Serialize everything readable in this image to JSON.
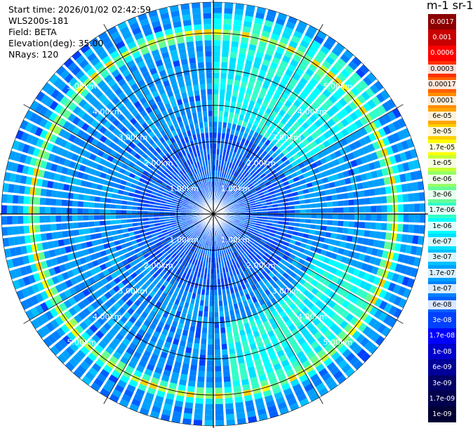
{
  "info": {
    "start_time": "Start time: 2026/01/02 02:42:59",
    "instrument": "WLS200s-181",
    "field": "Field: BETA",
    "elevation": "Elevation(deg): 35.00",
    "nrays": "NRays: 120"
  },
  "colorbar": {
    "title": "m-1 sr-1",
    "entries": [
      {
        "label": "0.0017",
        "color": "#8b0000"
      },
      {
        "label": "0.001",
        "color": "#c80000"
      },
      {
        "label": "0.0006",
        "color": "#ff0000"
      },
      {
        "label": "0.0003",
        "color": "#ff3000"
      },
      {
        "label": "0.00017",
        "color": "#ff6000"
      },
      {
        "label": "0.0001",
        "color": "#ff8c00"
      },
      {
        "label": "6e-05",
        "color": "#ffa500"
      },
      {
        "label": "3e-05",
        "color": "#ffd000"
      },
      {
        "label": "1.7e-05",
        "color": "#ffff00"
      },
      {
        "label": "1e-05",
        "color": "#c8ff32"
      },
      {
        "label": "6e-06",
        "color": "#96ff64"
      },
      {
        "label": "3e-06",
        "color": "#64ff96"
      },
      {
        "label": "1.7e-06",
        "color": "#32ffc8"
      },
      {
        "label": "1e-06",
        "color": "#00ffff"
      },
      {
        "label": "6e-07",
        "color": "#00e0ff"
      },
      {
        "label": "3e-07",
        "color": "#00c0ff"
      },
      {
        "label": "1.7e-07",
        "color": "#00a0ff"
      },
      {
        "label": "1e-07",
        "color": "#0080ff"
      },
      {
        "label": "6e-08",
        "color": "#0060ff"
      },
      {
        "label": "3e-08",
        "color": "#0040ff"
      },
      {
        "label": "1.7e-08",
        "color": "#0000ff"
      },
      {
        "label": "1e-08",
        "color": "#0000cc"
      },
      {
        "label": "6e-09",
        "color": "#000099"
      },
      {
        "label": "3e-09",
        "color": "#000066"
      },
      {
        "label": "1.7e-09",
        "color": "#00004d"
      },
      {
        "label": "1e-09",
        "color": "#000033"
      }
    ]
  },
  "chart_data": {
    "type": "heatmap",
    "projection": "polar (PPI scan)",
    "field": "BETA",
    "units": "m-1 sr-1",
    "elevation_deg": 35.0,
    "n_rays": 120,
    "max_range_km": 5.85,
    "range_rings_km": [
      1,
      2,
      3,
      4,
      5
    ],
    "range_ring_labels": [
      "1.00km",
      "2.00km",
      "3.00km",
      "4.00km",
      "5.00km"
    ],
    "background_value": 1.7e-07,
    "features": [
      {
        "description": "aerosol/cloud ring",
        "range_km": 5.0,
        "peak_value": 6e-05
      },
      {
        "description": "elevated return sector (north-east)",
        "azimuth_deg": [
          0,
          60
        ],
        "range_km": [
          2.5,
          5.5
        ],
        "value": 1.7e-06
      },
      {
        "description": "elevated return sector (south-east)",
        "azimuth_deg": [
          110,
          175
        ],
        "range_km": [
          3.0,
          5.0
        ],
        "value": 1.7e-06
      }
    ]
  }
}
